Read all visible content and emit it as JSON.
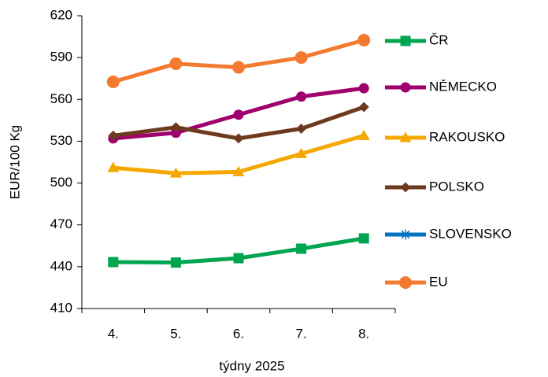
{
  "chart_data": {
    "type": "line",
    "y_label": "EUR/100 Kg",
    "x_label": "týdny 2025",
    "categories": [
      "4.",
      "5.",
      "6.",
      "7.",
      "8."
    ],
    "ylim": [
      410,
      620
    ],
    "yticks": [
      410,
      440,
      470,
      500,
      530,
      560,
      590,
      620
    ],
    "grid": false,
    "legend": "right",
    "series": [
      {
        "name": "ČR",
        "color": "#00a550",
        "marker": "square",
        "values": [
          443.3,
          443.0,
          446.1,
          452.9,
          460.3
        ]
      },
      {
        "name": "NĚMECKO",
        "color": "#a0006e",
        "marker": "circle",
        "values": [
          532,
          536,
          549,
          562,
          568
        ]
      },
      {
        "name": "RAKOUSKO",
        "color": "#f5a800",
        "marker": "triangle",
        "values": [
          511,
          507,
          508,
          521,
          534
        ]
      },
      {
        "name": "POLSKO",
        "color": "#6e3a1e",
        "marker": "diamond",
        "values": [
          534,
          540,
          532,
          539,
          554.5
        ]
      },
      {
        "name": "SLOVENSKO",
        "color": "#0070c0",
        "marker": "star",
        "values": [
          null,
          null,
          null,
          null,
          null
        ]
      },
      {
        "name": "EU",
        "color": "#f47a30",
        "marker": "circle",
        "values": [
          572.6,
          585.6,
          583,
          590,
          602.5
        ]
      }
    ]
  }
}
